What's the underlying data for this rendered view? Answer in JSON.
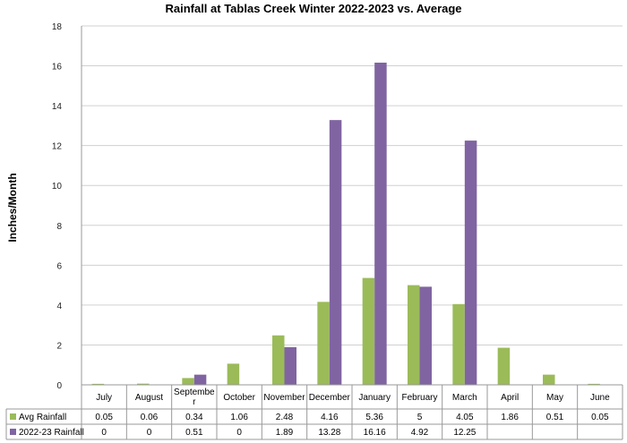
{
  "chart_data": {
    "type": "bar",
    "title": "Rainfall at Tablas Creek Winter 2022-2023 vs. Average",
    "ylabel": "Inches/Month",
    "xlabel": "",
    "ylim": [
      0,
      18
    ],
    "yticks": [
      0,
      2,
      4,
      6,
      8,
      10,
      12,
      14,
      16,
      18
    ],
    "grid": true,
    "legend": "data-table",
    "categories": [
      "July",
      "August",
      "September",
      "October",
      "November",
      "December",
      "January",
      "February",
      "March",
      "April",
      "May",
      "June"
    ],
    "series": [
      {
        "name": "Avg Rainfall",
        "color": "#9BBB59",
        "values": [
          0.05,
          0.06,
          0.34,
          1.06,
          2.48,
          4.16,
          5.36,
          5,
          4.05,
          1.86,
          0.51,
          0.05
        ]
      },
      {
        "name": "2022-23 Rainfall",
        "color": "#8064A2",
        "values": [
          0,
          0,
          0.51,
          0,
          1.89,
          13.28,
          16.16,
          4.92,
          12.25,
          null,
          null,
          null
        ]
      }
    ]
  }
}
